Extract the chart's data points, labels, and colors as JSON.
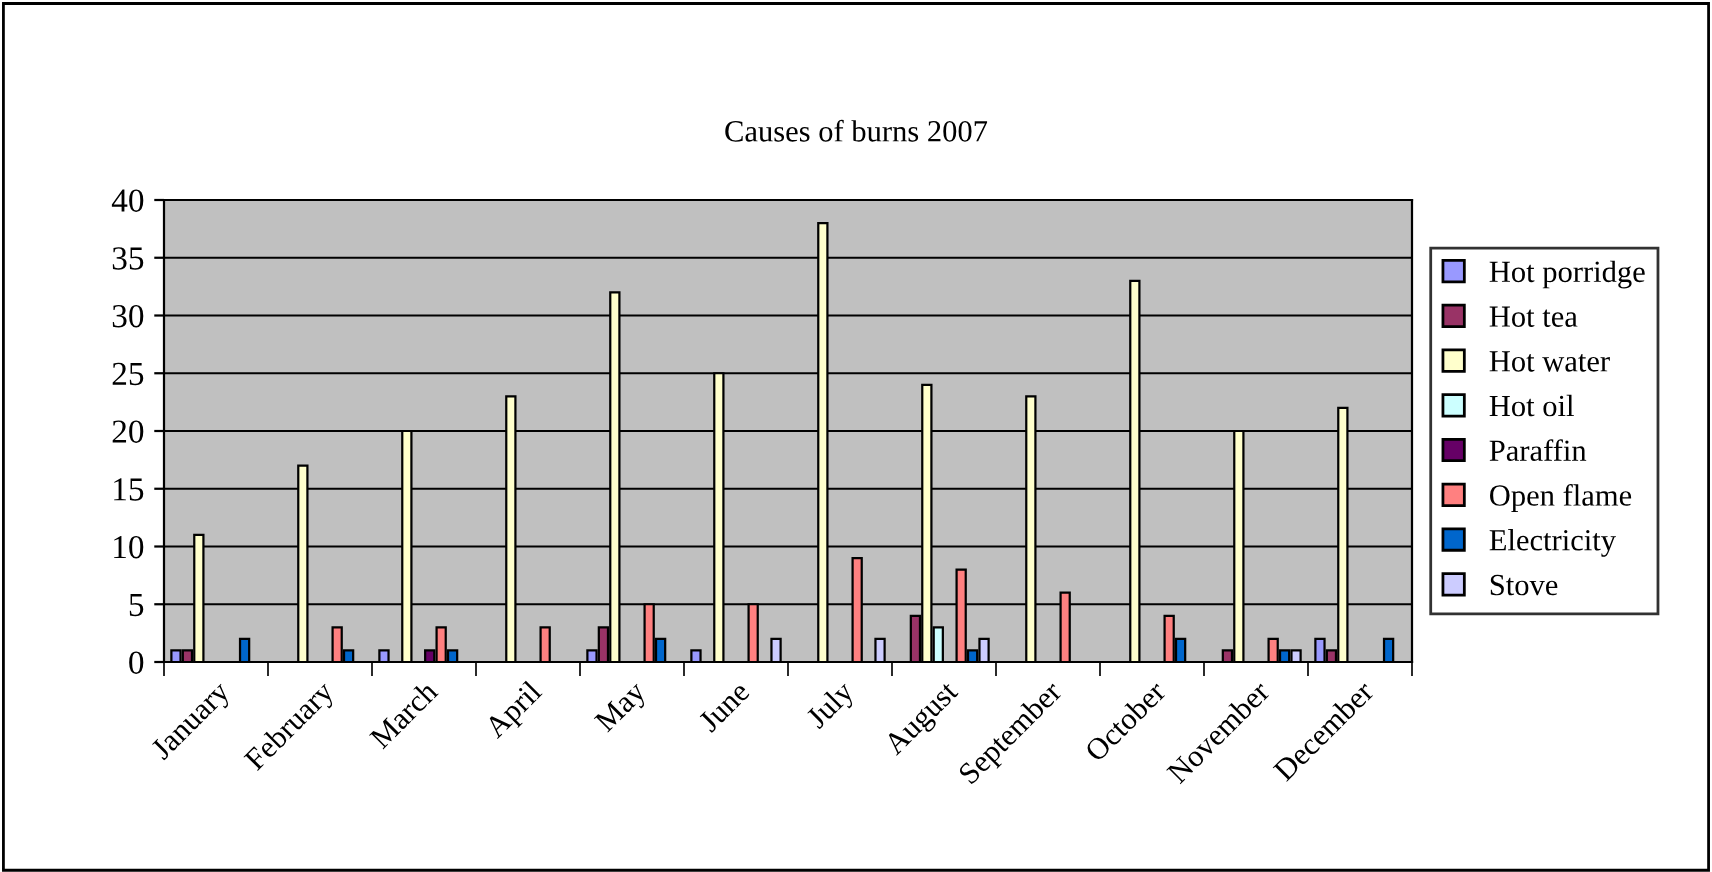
{
  "chart_data": {
    "type": "bar",
    "title": "Causes of burns 2007",
    "categories": [
      "January",
      "February",
      "March",
      "April",
      "May",
      "June",
      "July",
      "August",
      "September",
      "October",
      "November",
      "December"
    ],
    "series": [
      {
        "name": "Hot porridge",
        "color": "#9999ff",
        "values": [
          1,
          null,
          1,
          null,
          1,
          1,
          null,
          null,
          null,
          null,
          null,
          2
        ]
      },
      {
        "name": "Hot tea",
        "color": "#993366",
        "values": [
          1,
          null,
          null,
          null,
          3,
          null,
          null,
          4,
          null,
          null,
          1,
          1
        ]
      },
      {
        "name": "Hot water",
        "color": "#ffffcc",
        "values": [
          11,
          17,
          20,
          23,
          32,
          25,
          38,
          24,
          23,
          33,
          20,
          22
        ]
      },
      {
        "name": "Hot oil",
        "color": "#ccffff",
        "values": [
          null,
          null,
          null,
          null,
          null,
          null,
          null,
          3,
          null,
          null,
          null,
          null
        ]
      },
      {
        "name": "Paraffin",
        "color": "#660066",
        "values": [
          null,
          null,
          1,
          null,
          null,
          null,
          null,
          null,
          null,
          null,
          null,
          null
        ]
      },
      {
        "name": "Open flame",
        "color": "#ff8080",
        "values": [
          null,
          3,
          3,
          3,
          5,
          5,
          9,
          8,
          6,
          4,
          2,
          null
        ]
      },
      {
        "name": "Electricity",
        "color": "#0066cc",
        "values": [
          2,
          1,
          1,
          null,
          2,
          null,
          null,
          1,
          null,
          2,
          1,
          2
        ]
      },
      {
        "name": "Stove",
        "color": "#ccccff",
        "values": [
          null,
          null,
          null,
          null,
          null,
          2,
          2,
          2,
          null,
          null,
          1,
          null
        ]
      }
    ],
    "ylim": [
      0,
      40
    ],
    "yticks": [
      0,
      5,
      10,
      15,
      20,
      25,
      30,
      35,
      40
    ],
    "grid": "y",
    "legend": "right"
  }
}
